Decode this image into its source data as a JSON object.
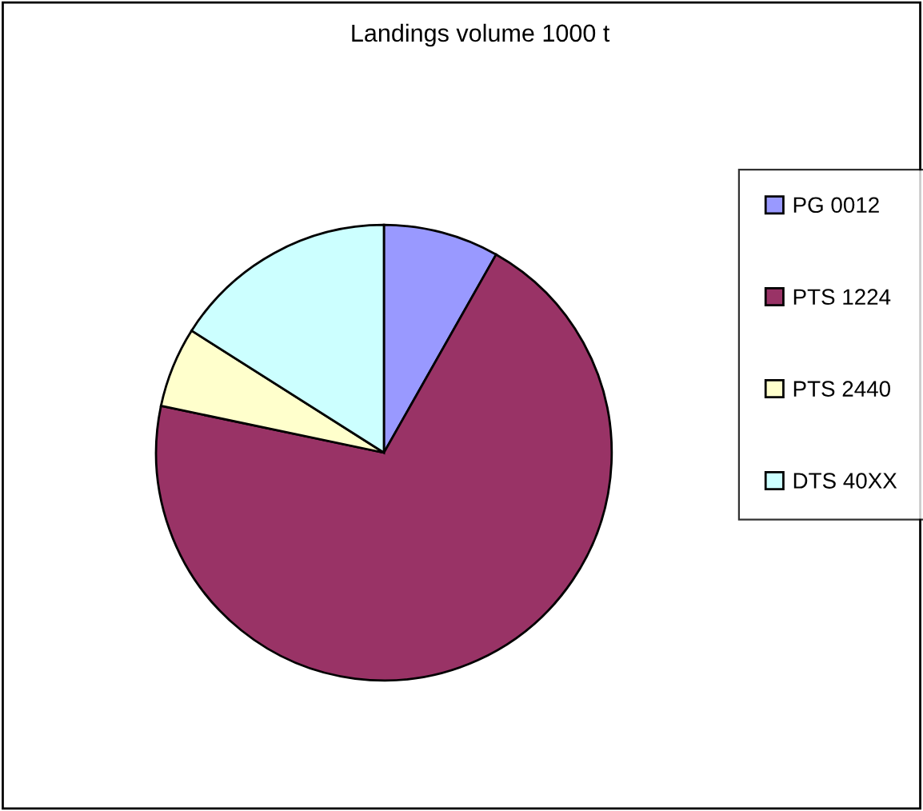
{
  "chart_data": {
    "type": "pie",
    "title": "Landings volume 1000 t",
    "categories": [
      "PG 0012",
      "PTS 1224",
      "PTS 2440",
      "DTS 40XX"
    ],
    "values": [
      8.2,
      70.1,
      5.7,
      16.0
    ],
    "colors": [
      "#9999ff",
      "#993366",
      "#ffffcc",
      "#ccffff"
    ],
    "legend": "right"
  }
}
